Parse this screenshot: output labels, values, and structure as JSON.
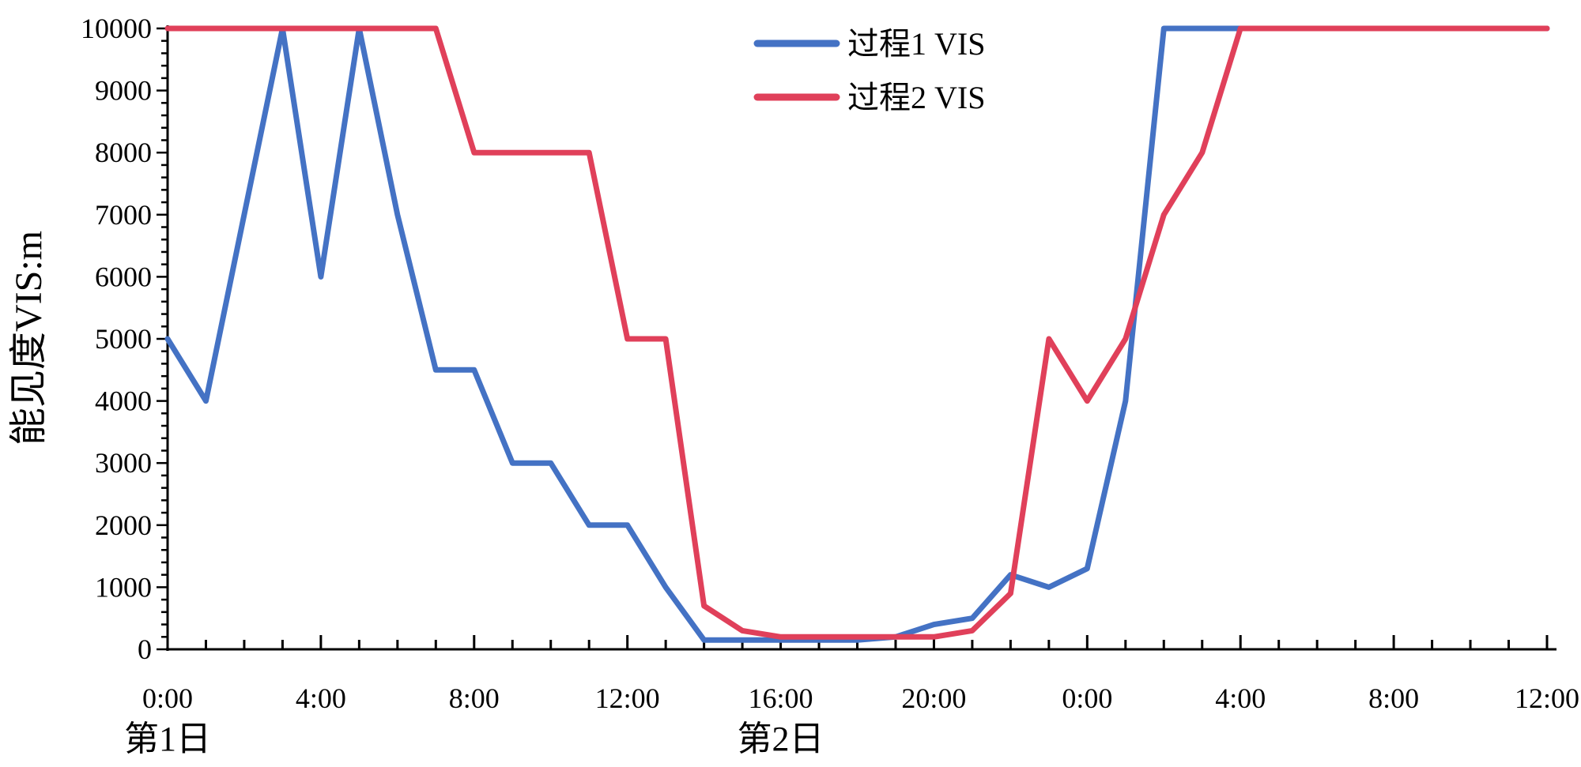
{
  "chart_data": {
    "type": "line",
    "ylabel": "能见度VIS:m",
    "ylim": [
      0,
      10000
    ],
    "yticks": [
      0,
      1000,
      2000,
      3000,
      4000,
      5000,
      6000,
      7000,
      8000,
      9000,
      10000
    ],
    "xlim": [
      0,
      36
    ],
    "xtick_hours": [
      0,
      4,
      8,
      12,
      16,
      20,
      24,
      28,
      32,
      36
    ],
    "xtick_labels": [
      "0:00",
      "4:00",
      "8:00",
      "12:00",
      "16:00",
      "20:00",
      "0:00",
      "4:00",
      "8:00",
      "12:00"
    ],
    "day_labels": [
      {
        "hour": 0,
        "text": "第1日"
      },
      {
        "hour": 16,
        "text": "第2日"
      }
    ],
    "grid": false,
    "legend": "top-center",
    "series": [
      {
        "name": "过程1 VIS",
        "color": "#4472C4",
        "x": [
          0,
          1,
          2,
          3,
          4,
          5,
          6,
          7,
          8,
          9,
          10,
          11,
          12,
          13,
          14,
          15,
          16,
          17,
          18,
          19,
          20,
          21,
          22,
          23,
          24,
          25,
          26,
          27,
          28,
          29,
          30,
          31,
          32,
          33,
          34,
          35,
          36
        ],
        "values": [
          5000,
          4000,
          7000,
          10000,
          6000,
          10000,
          7000,
          4500,
          4500,
          3000,
          3000,
          2000,
          2000,
          1000,
          150,
          150,
          150,
          150,
          150,
          200,
          400,
          500,
          1200,
          1000,
          1300,
          4000,
          10000,
          10000,
          10000,
          10000,
          10000,
          10000,
          10000,
          10000,
          10000,
          10000,
          10000
        ]
      },
      {
        "name": "过程2 VIS",
        "color": "#E0405A",
        "x": [
          0,
          1,
          2,
          3,
          4,
          5,
          6,
          7,
          8,
          9,
          10,
          11,
          12,
          13,
          14,
          15,
          16,
          17,
          18,
          19,
          20,
          21,
          22,
          23,
          24,
          25,
          26,
          27,
          28,
          29,
          30,
          31,
          32,
          33,
          34,
          35,
          36
        ],
        "values": [
          10000,
          10000,
          10000,
          10000,
          10000,
          10000,
          10000,
          10000,
          8000,
          8000,
          8000,
          8000,
          5000,
          5000,
          700,
          300,
          200,
          200,
          200,
          200,
          200,
          300,
          900,
          5000,
          4000,
          5000,
          7000,
          8000,
          10000,
          10000,
          10000,
          10000,
          10000,
          10000,
          10000,
          10000,
          10000
        ]
      }
    ]
  }
}
